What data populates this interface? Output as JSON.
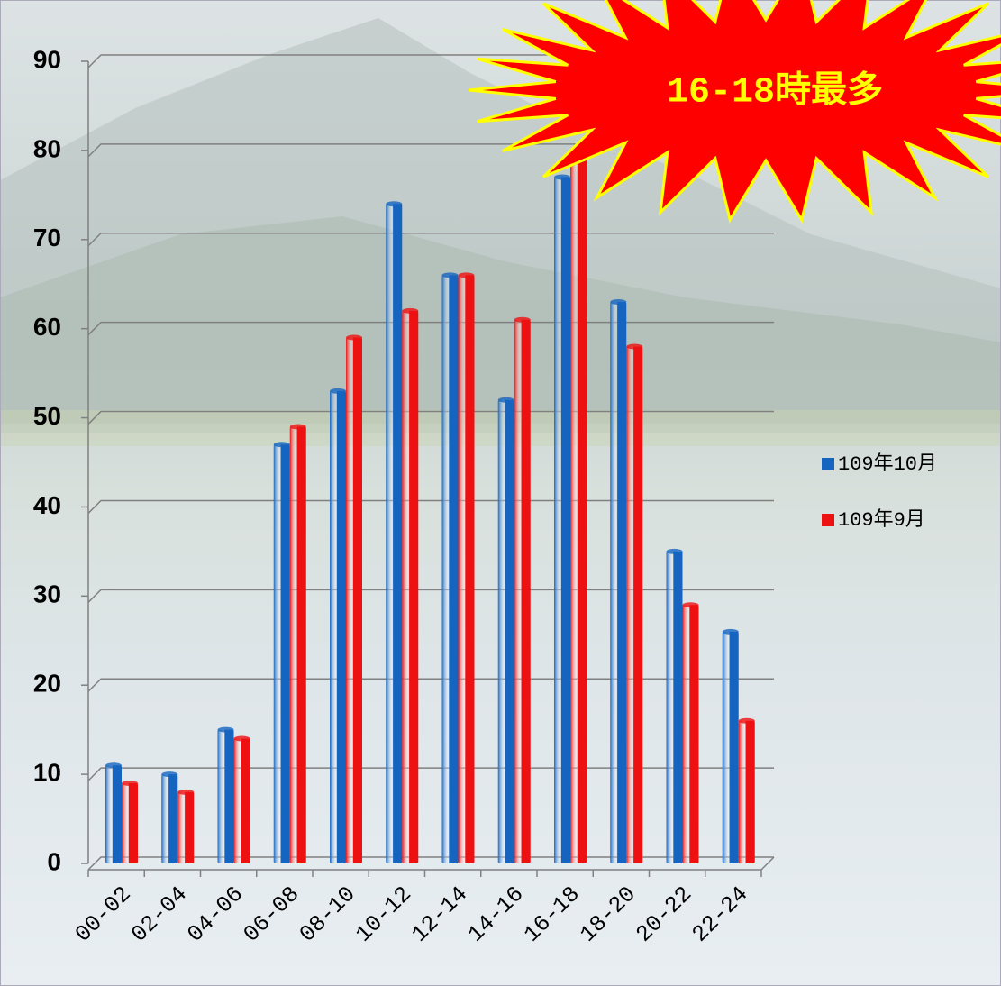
{
  "chart_data": {
    "type": "bar",
    "annotation": "16-18時最多",
    "categories": [
      "00-02",
      "02-04",
      "04-06",
      "06-08",
      "08-10",
      "10-12",
      "12-14",
      "14-16",
      "16-18",
      "18-20",
      "20-22",
      "22-24"
    ],
    "series": [
      {
        "name": "109年10月",
        "color": "#1565c0",
        "values": [
          11,
          10,
          15,
          47,
          53,
          74,
          66,
          52,
          77,
          63,
          35,
          26
        ]
      },
      {
        "name": "109年9月",
        "color": "#ee1111",
        "values": [
          9,
          8,
          14,
          49,
          59,
          62,
          66,
          61,
          80,
          58,
          29,
          16
        ]
      }
    ],
    "ylim": [
      0,
      90
    ],
    "yticks": [
      0,
      10,
      20,
      30,
      40,
      50,
      60,
      70,
      80,
      90
    ],
    "grid": true,
    "legend": "right"
  }
}
